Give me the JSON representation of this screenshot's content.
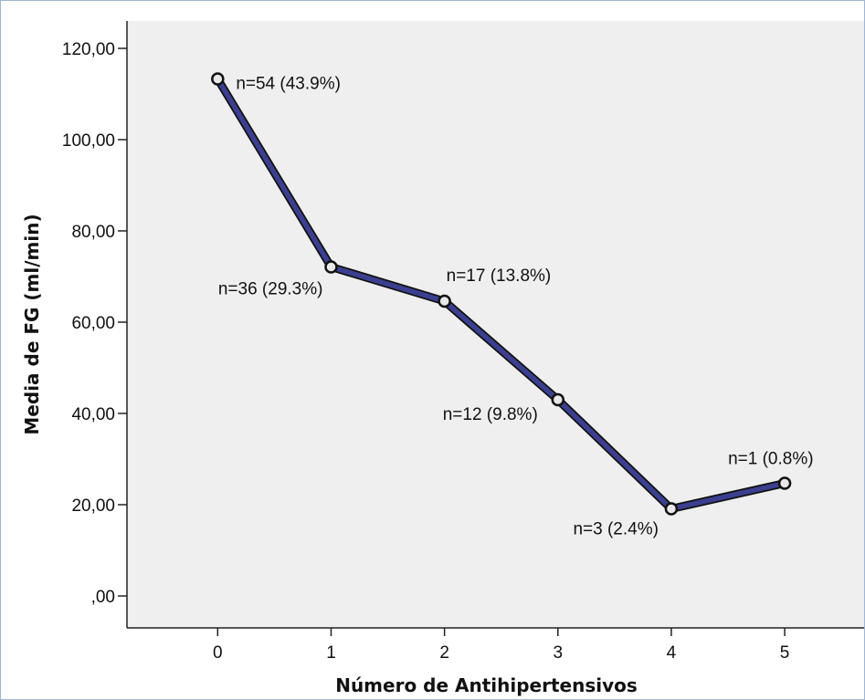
{
  "chart_data": {
    "type": "line",
    "title": "",
    "xlabel": "Número de Antihipertensivos",
    "ylabel": "Media de FG (ml/min)",
    "x": [
      0,
      1,
      2,
      3,
      4,
      5
    ],
    "x_tick_labels": [
      "0",
      "1",
      "2",
      "3",
      "4",
      "5"
    ],
    "y_tick_labels": [
      ",00",
      "20,00",
      "40,00",
      "60,00",
      "80,00",
      "100,00",
      "120,00"
    ],
    "y_ticks": [
      0,
      20,
      40,
      60,
      80,
      100,
      120
    ],
    "ylim": [
      -7,
      126
    ],
    "xlim": [
      -0.8,
      5.7
    ],
    "grid": false,
    "series": [
      {
        "values": [
          113.3,
          72.1,
          64.6,
          43.0,
          19.1,
          24.7
        ],
        "point_labels": [
          "n=54 (43.9%)",
          "n=36 (29.3%)",
          "n=17 (13.8%)",
          "n=12 (9.8%)",
          "n=3 (2.4%)",
          "n=1 (0.8%)"
        ]
      }
    ],
    "colors": {
      "line": "#3b3f8f",
      "plot_background": "#efefef",
      "marker_fill": "#e8e8e8"
    }
  }
}
